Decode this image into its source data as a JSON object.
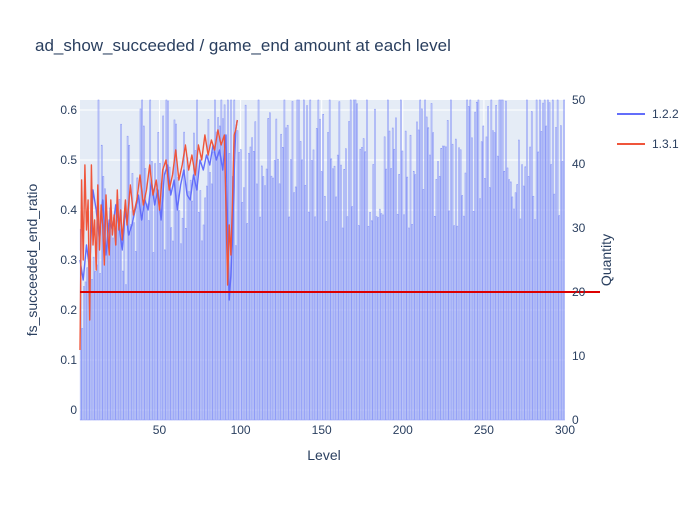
{
  "chart_data": {
    "type": "bar+line",
    "title": "ad_show_succeeded / game_end amount at each level",
    "xlabel": "Level",
    "ylabel_left": "fs_succeeded_end_ratio",
    "ylabel_right": "Quantity",
    "xlim": [
      1,
      300
    ],
    "ylim_left": [
      -0.02,
      0.62
    ],
    "ylim_right": [
      0,
      50
    ],
    "x_ticks": [
      50,
      100,
      150,
      200,
      250,
      300
    ],
    "y_ticks_left": [
      0,
      0.1,
      0.2,
      0.3,
      0.4,
      0.5,
      0.6
    ],
    "y_ticks_right": [
      0,
      10,
      20,
      30,
      40,
      50
    ],
    "reference_line": {
      "axis": "right",
      "value": 20,
      "color": "#dd0000"
    },
    "bar_series": {
      "axis": "right",
      "color": "#8f9cf7",
      "x_range": [
        1,
        300
      ],
      "segments": [
        {
          "from": 1,
          "to": 10,
          "low": 12,
          "high": 32
        },
        {
          "from": 11,
          "to": 40,
          "low": 20,
          "high": 44
        },
        {
          "from": 41,
          "to": 100,
          "low": 26,
          "high": 50
        },
        {
          "from": 101,
          "to": 300,
          "low": 30,
          "high": 50
        }
      ]
    },
    "legend": {
      "placement": "top-right"
    },
    "series": [
      {
        "name": "1.2.2",
        "axis": "left",
        "color": "#636efa",
        "x": [
          1,
          3,
          5,
          7,
          9,
          11,
          13,
          15,
          17,
          19,
          21,
          23,
          25,
          27,
          29,
          31,
          33,
          35,
          37,
          39,
          41,
          43,
          45,
          47,
          49,
          51,
          53,
          55,
          57,
          59,
          61,
          63,
          65,
          67,
          69,
          71,
          73,
          75,
          77,
          79,
          81,
          83,
          85,
          87,
          89,
          91,
          92,
          93,
          94,
          95,
          96,
          97,
          98
        ],
        "y": [
          0.3,
          0.26,
          0.33,
          0.28,
          0.44,
          0.4,
          0.34,
          0.42,
          0.31,
          0.38,
          0.36,
          0.41,
          0.37,
          0.32,
          0.4,
          0.35,
          0.37,
          0.4,
          0.43,
          0.38,
          0.42,
          0.4,
          0.46,
          0.41,
          0.44,
          0.38,
          0.47,
          0.49,
          0.43,
          0.46,
          0.4,
          0.45,
          0.48,
          0.43,
          0.42,
          0.47,
          0.44,
          0.5,
          0.48,
          0.51,
          0.49,
          0.53,
          0.5,
          0.52,
          0.48,
          0.55,
          0.36,
          0.22,
          0.27,
          0.34,
          0.47,
          0.56,
          0.58
        ]
      },
      {
        "name": "1.3.1",
        "axis": "left",
        "color": "#ef553b",
        "x": [
          1,
          2,
          3,
          4,
          5,
          6,
          7,
          8,
          9,
          10,
          11,
          12,
          13,
          14,
          15,
          16,
          17,
          18,
          19,
          20,
          21,
          22,
          23,
          24,
          25,
          26,
          27,
          28,
          29,
          30,
          32,
          34,
          36,
          38,
          40,
          42,
          44,
          46,
          48,
          50,
          52,
          54,
          56,
          58,
          60,
          62,
          64,
          66,
          68,
          70,
          72,
          74,
          76,
          78,
          80,
          82,
          84,
          86,
          88,
          90,
          92,
          93,
          94,
          95,
          96,
          97,
          98
        ],
        "y": [
          0.12,
          0.46,
          0.3,
          0.49,
          0.36,
          0.42,
          0.18,
          0.49,
          0.33,
          0.38,
          0.28,
          0.45,
          0.32,
          0.41,
          0.37,
          0.29,
          0.43,
          0.36,
          0.31,
          0.42,
          0.35,
          0.39,
          0.33,
          0.44,
          0.36,
          0.4,
          0.34,
          0.38,
          0.42,
          0.37,
          0.45,
          0.39,
          0.42,
          0.47,
          0.41,
          0.44,
          0.49,
          0.43,
          0.46,
          0.4,
          0.48,
          0.5,
          0.44,
          0.47,
          0.52,
          0.46,
          0.49,
          0.53,
          0.48,
          0.51,
          0.47,
          0.53,
          0.5,
          0.55,
          0.51,
          0.54,
          0.52,
          0.56,
          0.53,
          0.55,
          0.25,
          0.37,
          0.31,
          0.42,
          0.55,
          0.56,
          0.58
        ]
      }
    ]
  }
}
